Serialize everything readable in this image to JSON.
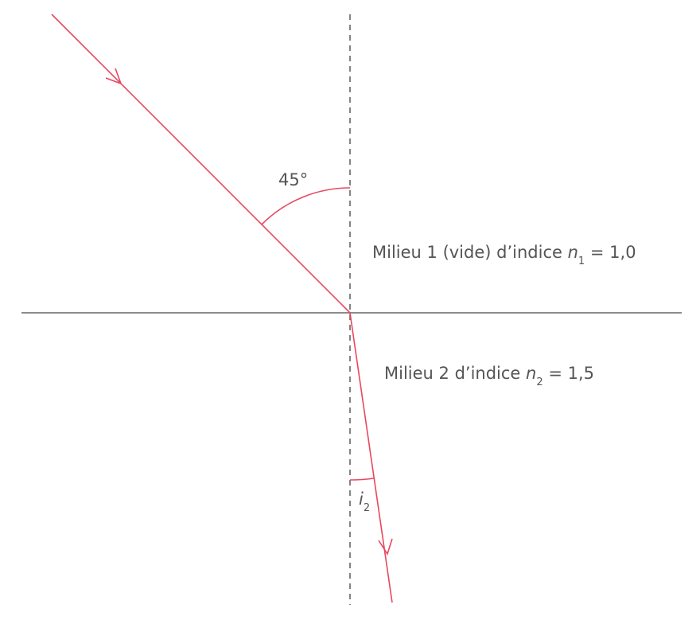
{
  "incidence_angle": "45°",
  "medium_1": {
    "text": "Milieu 1 (vide) d’indice",
    "symbol": "n",
    "subscript": "1",
    "value": "= 1,0"
  },
  "medium_2": {
    "text": "Milieu 2 d’indice",
    "symbol": "n",
    "subscript": "2",
    "value": "= 1,5"
  },
  "refraction_angle": {
    "symbol": "i",
    "subscript": "2"
  }
}
